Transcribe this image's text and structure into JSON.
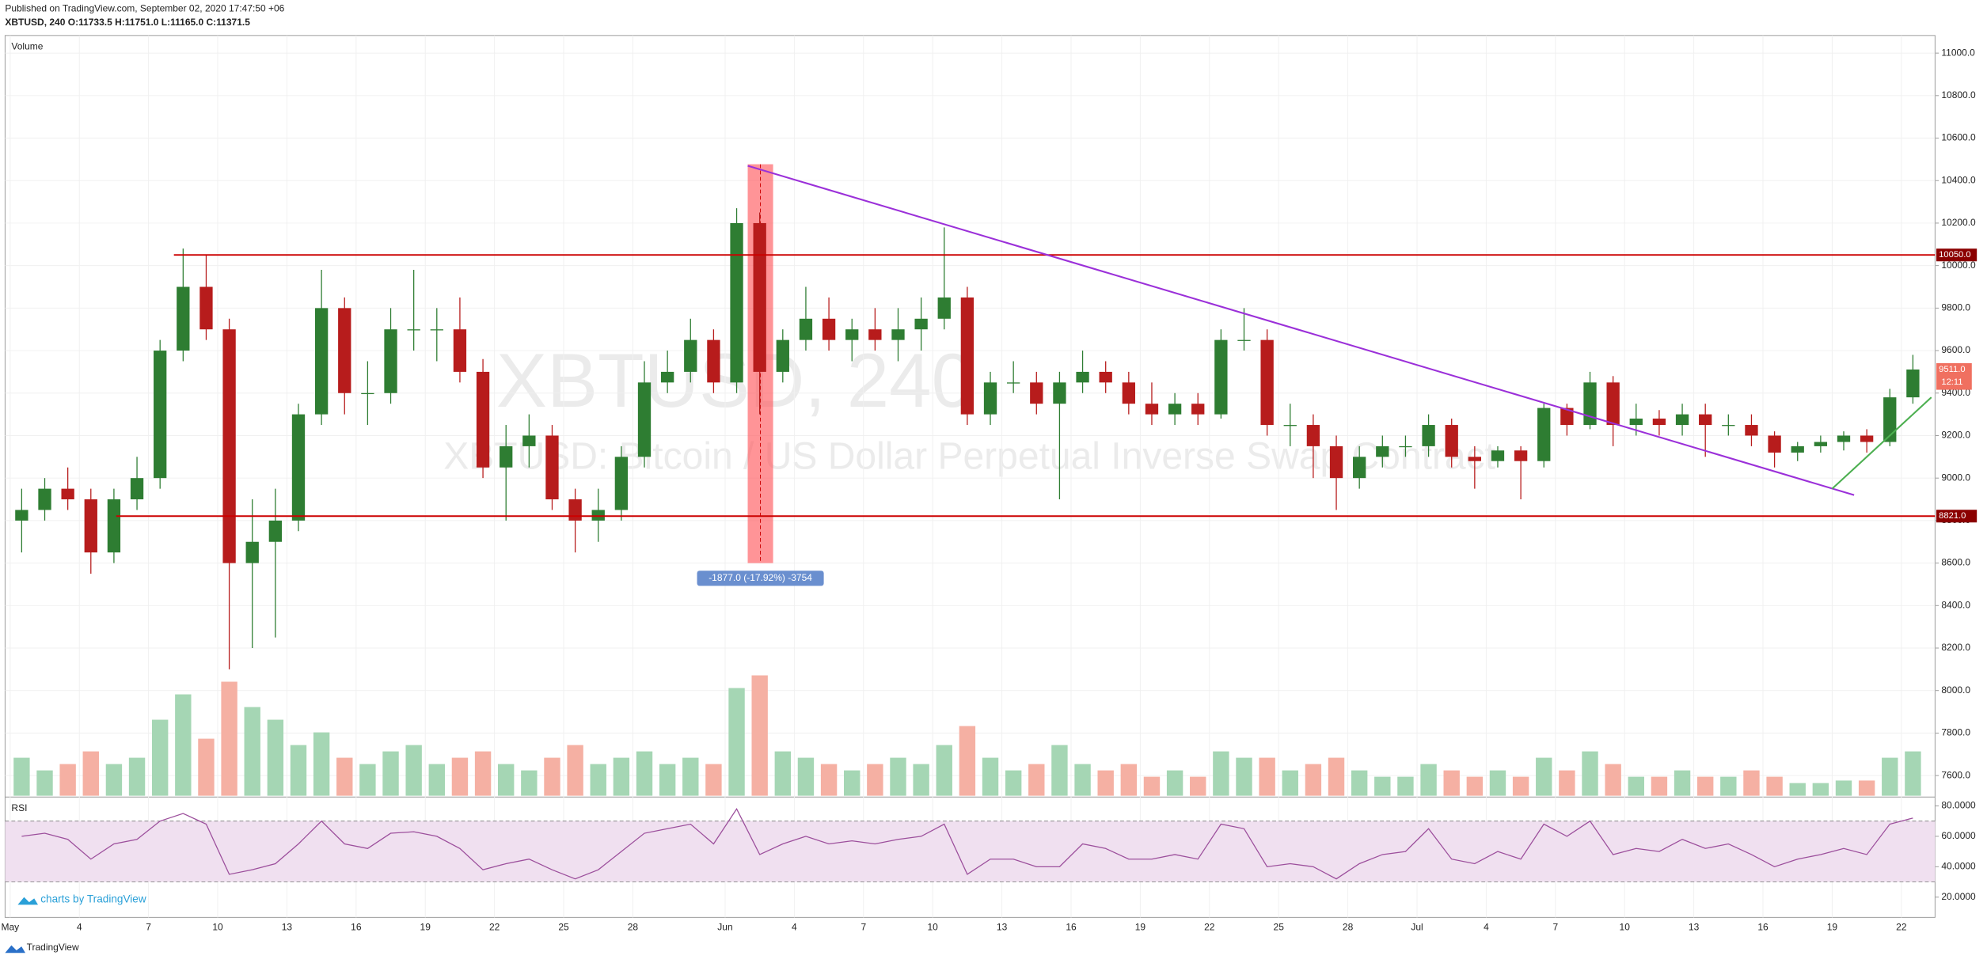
{
  "header": {
    "published": "Published on TradingView.com, September 02, 2020 17:47:50 +06",
    "symbol_line": "XBTUSD, 240  O:11733.5 H:11751.0 L:11165.0 C:11371.5"
  },
  "watermark": {
    "symbol": "XBTUSD, 240",
    "description": "XBTUSD: Bitcoin / US Dollar Perpetual Inverse Swap Contract"
  },
  "footer": {
    "branding": "charts by TradingView",
    "logo": "TradingView"
  },
  "chart_data": [
    {
      "type": "candlestick",
      "pane_label": "Volume",
      "x": [
        0,
        1,
        2,
        3,
        4,
        5,
        6,
        7,
        8,
        9,
        10,
        11,
        12,
        13,
        14,
        15,
        16,
        17,
        18,
        19,
        20,
        21,
        22,
        23,
        24,
        25,
        26,
        27,
        28,
        29,
        30,
        31,
        32,
        33,
        34,
        35,
        36,
        37,
        38,
        39,
        40,
        41,
        42,
        43,
        44,
        45,
        46,
        47,
        48,
        49,
        50,
        51,
        52,
        53,
        54,
        55,
        56,
        57,
        58,
        59,
        60,
        61,
        62,
        63,
        64,
        65,
        66,
        67,
        68,
        69,
        70,
        71,
        72,
        73,
        74,
        75,
        76,
        77,
        78,
        79,
        80,
        81,
        82
      ],
      "ohlc": [
        [
          8800,
          8950,
          8650,
          8850
        ],
        [
          8850,
          9000,
          8800,
          8950
        ],
        [
          8950,
          9050,
          8850,
          8900
        ],
        [
          8900,
          8950,
          8550,
          8650
        ],
        [
          8650,
          8950,
          8600,
          8900
        ],
        [
          8900,
          9100,
          8850,
          9000
        ],
        [
          9000,
          9650,
          8950,
          9600
        ],
        [
          9600,
          10080,
          9550,
          9900
        ],
        [
          9900,
          10050,
          9650,
          9700
        ],
        [
          9700,
          9750,
          8100,
          8600
        ],
        [
          8600,
          8900,
          8200,
          8700
        ],
        [
          8700,
          8950,
          8250,
          8800
        ],
        [
          8800,
          9350,
          8750,
          9300
        ],
        [
          9300,
          9980,
          9250,
          9800
        ],
        [
          9800,
          9850,
          9300,
          9400
        ],
        [
          9400,
          9550,
          9250,
          9400
        ],
        [
          9400,
          9800,
          9350,
          9700
        ],
        [
          9700,
          9980,
          9600,
          9700
        ],
        [
          9700,
          9800,
          9550,
          9700
        ],
        [
          9700,
          9850,
          9450,
          9500
        ],
        [
          9500,
          9560,
          9000,
          9050
        ],
        [
          9050,
          9250,
          8800,
          9150
        ],
        [
          9150,
          9300,
          9050,
          9200
        ],
        [
          9200,
          9250,
          8850,
          8900
        ],
        [
          8900,
          8950,
          8650,
          8800
        ],
        [
          8800,
          8950,
          8700,
          8850
        ],
        [
          8850,
          9150,
          8800,
          9100
        ],
        [
          9100,
          9550,
          9050,
          9450
        ],
        [
          9450,
          9600,
          9400,
          9500
        ],
        [
          9500,
          9750,
          9450,
          9650
        ],
        [
          9650,
          9700,
          9400,
          9450
        ],
        [
          9450,
          10270,
          9400,
          10200
        ],
        [
          10200,
          10250,
          9300,
          9500
        ],
        [
          9500,
          9700,
          9450,
          9650
        ],
        [
          9650,
          9900,
          9600,
          9750
        ],
        [
          9750,
          9850,
          9600,
          9650
        ],
        [
          9650,
          9750,
          9550,
          9700
        ],
        [
          9700,
          9800,
          9600,
          9650
        ],
        [
          9650,
          9800,
          9550,
          9700
        ],
        [
          9700,
          9850,
          9600,
          9750
        ],
        [
          9750,
          10180,
          9700,
          9850
        ],
        [
          9850,
          9900,
          9250,
          9300
        ],
        [
          9300,
          9500,
          9250,
          9450
        ],
        [
          9450,
          9550,
          9400,
          9450
        ],
        [
          9450,
          9500,
          9300,
          9350
        ],
        [
          9350,
          9500,
          8900,
          9450
        ],
        [
          9450,
          9600,
          9400,
          9500
        ],
        [
          9500,
          9550,
          9400,
          9450
        ],
        [
          9450,
          9500,
          9300,
          9350
        ],
        [
          9350,
          9450,
          9250,
          9300
        ],
        [
          9300,
          9400,
          9250,
          9350
        ],
        [
          9350,
          9400,
          9250,
          9300
        ],
        [
          9300,
          9700,
          9280,
          9650
        ],
        [
          9650,
          9800,
          9600,
          9650
        ],
        [
          9650,
          9700,
          9200,
          9250
        ],
        [
          9250,
          9350,
          9150,
          9250
        ],
        [
          9250,
          9300,
          9000,
          9150
        ],
        [
          9150,
          9200,
          8850,
          9000
        ],
        [
          9000,
          9150,
          8950,
          9100
        ],
        [
          9100,
          9200,
          9050,
          9150
        ],
        [
          9150,
          9200,
          9100,
          9150
        ],
        [
          9150,
          9300,
          9100,
          9250
        ],
        [
          9250,
          9280,
          9050,
          9100
        ],
        [
          9100,
          9150,
          8950,
          9080
        ],
        [
          9080,
          9150,
          9050,
          9130
        ],
        [
          9130,
          9150,
          8900,
          9080
        ],
        [
          9080,
          9350,
          9050,
          9330
        ],
        [
          9330,
          9350,
          9200,
          9250
        ],
        [
          9250,
          9500,
          9230,
          9450
        ],
        [
          9450,
          9480,
          9150,
          9250
        ],
        [
          9250,
          9350,
          9200,
          9280
        ],
        [
          9280,
          9320,
          9200,
          9250
        ],
        [
          9250,
          9350,
          9200,
          9300
        ],
        [
          9300,
          9350,
          9100,
          9250
        ],
        [
          9250,
          9300,
          9200,
          9250
        ],
        [
          9250,
          9300,
          9150,
          9200
        ],
        [
          9200,
          9220,
          9050,
          9120
        ],
        [
          9120,
          9170,
          9080,
          9150
        ],
        [
          9150,
          9200,
          9120,
          9170
        ],
        [
          9170,
          9220,
          9130,
          9200
        ],
        [
          9200,
          9230,
          9120,
          9170
        ],
        [
          9170,
          9420,
          9150,
          9380
        ],
        [
          9380,
          9580,
          9350,
          9511
        ]
      ],
      "volume": [
        30,
        20,
        25,
        35,
        25,
        30,
        60,
        80,
        45,
        90,
        70,
        60,
        40,
        50,
        30,
        25,
        35,
        40,
        25,
        30,
        35,
        25,
        20,
        30,
        40,
        25,
        30,
        35,
        25,
        30,
        25,
        85,
        95,
        35,
        30,
        25,
        20,
        25,
        30,
        25,
        40,
        55,
        30,
        20,
        25,
        40,
        25,
        20,
        25,
        15,
        20,
        15,
        35,
        30,
        30,
        20,
        25,
        30,
        20,
        15,
        15,
        25,
        20,
        15,
        20,
        15,
        30,
        20,
        35,
        25,
        15,
        15,
        20,
        15,
        15,
        20,
        15,
        10,
        10,
        12,
        12,
        30,
        35
      ],
      "up_color": "#2e7d32",
      "down_color": "#b71c1c",
      "volume_up_color": "#a5d6b4",
      "volume_down_color": "#f5b0a3",
      "xlim": [
        -0.22,
        83.46
      ],
      "ylim": [
        7505,
        11083
      ],
      "xticks": [
        {
          "value": 0,
          "label": "May"
        },
        {
          "value": 3,
          "label": "4"
        },
        {
          "value": 6,
          "label": "7"
        },
        {
          "value": 9,
          "label": "10"
        },
        {
          "value": 12,
          "label": "13"
        },
        {
          "value": 15,
          "label": "16"
        },
        {
          "value": 18,
          "label": "19"
        },
        {
          "value": 21,
          "label": "22"
        },
        {
          "value": 24,
          "label": "25"
        },
        {
          "value": 27,
          "label": "28"
        },
        {
          "value": 31,
          "label": "Jun"
        },
        {
          "value": 34,
          "label": "4"
        },
        {
          "value": 37,
          "label": "7"
        },
        {
          "value": 40,
          "label": "10"
        },
        {
          "value": 43,
          "label": "13"
        },
        {
          "value": 46,
          "label": "16"
        },
        {
          "value": 49,
          "label": "19"
        },
        {
          "value": 52,
          "label": "22"
        },
        {
          "value": 55,
          "label": "25"
        },
        {
          "value": 58,
          "label": "28"
        },
        {
          "value": 61,
          "label": "Jul"
        },
        {
          "value": 64,
          "label": "4"
        },
        {
          "value": 67,
          "label": "7"
        },
        {
          "value": 70,
          "label": "10"
        },
        {
          "value": 73,
          "label": "13"
        },
        {
          "value": 76,
          "label": "16"
        },
        {
          "value": 79,
          "label": "19"
        },
        {
          "value": 82,
          "label": "22"
        }
      ],
      "yticks": [
        {
          "value": 7600,
          "label": "7600.0"
        },
        {
          "value": 7800,
          "label": "7800.0"
        },
        {
          "value": 8000,
          "label": "8000.0"
        },
        {
          "value": 8200,
          "label": "8200.0"
        },
        {
          "value": 8400,
          "label": "8400.0"
        },
        {
          "value": 8600,
          "label": "8600.0"
        },
        {
          "value": 8800,
          "label": "8800.0"
        },
        {
          "value": 9000,
          "label": "9000.0"
        },
        {
          "value": 9200,
          "label": "9200.0"
        },
        {
          "value": 9400,
          "label": "9400.0"
        },
        {
          "value": 9600,
          "label": "9600.0"
        },
        {
          "value": 9800,
          "label": "9800.0"
        },
        {
          "value": 10000,
          "label": "10000.0"
        },
        {
          "value": 10200,
          "label": "10200.0"
        },
        {
          "value": 10400,
          "label": "10400.0"
        },
        {
          "value": 10600,
          "label": "10600.0"
        },
        {
          "value": 10800,
          "label": "10800.0"
        },
        {
          "value": 11000,
          "label": "11000.0"
        }
      ],
      "grid": true,
      "levels": [
        {
          "value": 10050,
          "label": "10050.0",
          "color": "#cc0000"
        },
        {
          "value": 8821,
          "label": "8821.0",
          "color": "#cc0000"
        }
      ],
      "last_price": {
        "value": 9511,
        "label": "9511.0",
        "countdown": "12:11",
        "color": "#f07060"
      },
      "trendlines": [
        {
          "x": [
            31.98,
            79.95
          ],
          "y": [
            10470,
            8920
          ],
          "color": "#9b30d9"
        },
        {
          "x": [
            79.0,
            83.3
          ],
          "y": [
            8950,
            9380
          ],
          "color": "#4caf50"
        }
      ],
      "measure": {
        "x": [
          31.98,
          33.08
        ],
        "y": [
          10477,
          8600
        ],
        "label": "-1877.0 (-17.92%) -3754",
        "color": "#ff5a5f"
      }
    },
    {
      "type": "line",
      "pane_label": "RSI",
      "color": "#9c4f9c",
      "x": [
        0,
        1,
        2,
        3,
        4,
        5,
        6,
        7,
        8,
        9,
        10,
        11,
        12,
        13,
        14,
        15,
        16,
        17,
        18,
        19,
        20,
        21,
        22,
        23,
        24,
        25,
        26,
        27,
        28,
        29,
        30,
        31,
        32,
        33,
        34,
        35,
        36,
        37,
        38,
        39,
        40,
        41,
        42,
        43,
        44,
        45,
        46,
        47,
        48,
        49,
        50,
        51,
        52,
        53,
        54,
        55,
        56,
        57,
        58,
        59,
        60,
        61,
        62,
        63,
        64,
        65,
        66,
        67,
        68,
        69,
        70,
        71,
        72,
        73,
        74,
        75,
        76,
        77,
        78,
        79,
        80,
        81,
        82
      ],
      "values": [
        60,
        62,
        58,
        45,
        55,
        58,
        70,
        75,
        68,
        35,
        38,
        42,
        55,
        70,
        55,
        52,
        62,
        63,
        60,
        52,
        38,
        42,
        45,
        38,
        32,
        38,
        50,
        62,
        65,
        68,
        55,
        78,
        48,
        55,
        60,
        55,
        57,
        55,
        58,
        60,
        68,
        35,
        45,
        45,
        40,
        40,
        55,
        52,
        45,
        45,
        48,
        45,
        68,
        65,
        40,
        42,
        40,
        32,
        42,
        48,
        50,
        65,
        45,
        42,
        50,
        45,
        68,
        60,
        70,
        48,
        52,
        50,
        58,
        52,
        55,
        48,
        40,
        45,
        48,
        52,
        48,
        68,
        72
      ],
      "xlim": [
        -0.22,
        83.46
      ],
      "ylim": [
        6.7,
        85
      ],
      "yticks": [
        {
          "value": 20,
          "label": "20.0000"
        },
        {
          "value": 40,
          "label": "40.0000"
        },
        {
          "value": 60,
          "label": "60.0000"
        },
        {
          "value": 80,
          "label": "80.0000"
        }
      ],
      "band": [
        30,
        70
      ],
      "band_color": "#f0e0f0"
    }
  ]
}
